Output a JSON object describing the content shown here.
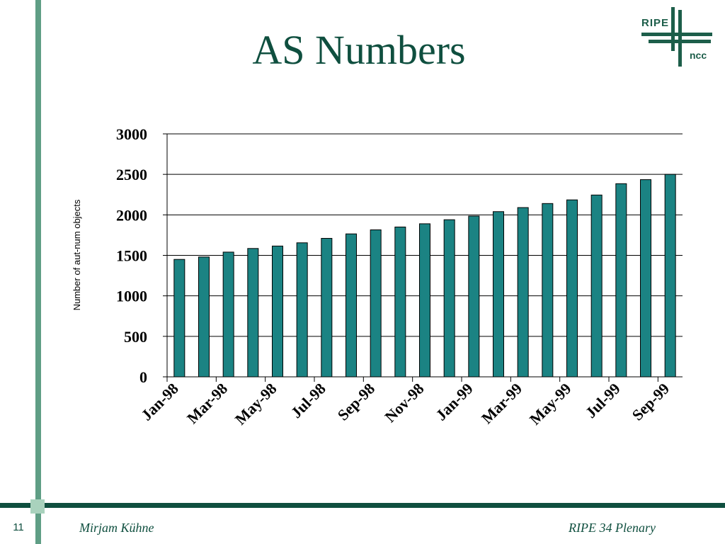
{
  "slide": {
    "title": "AS Numbers",
    "page_number": "11",
    "author": "Mirjam Kühne",
    "event": "RIPE 34 Plenary"
  },
  "logo": {
    "top_text": "RIPE",
    "bottom_text": "ncc"
  },
  "colors": {
    "bar_fill": "#1b8383",
    "title": "#0f4f3f",
    "accent_bar": "#5f9e85",
    "footer_bar": "#0f4f3f"
  },
  "chart_data": {
    "type": "bar",
    "title": "",
    "xlabel": "",
    "ylabel": "Number of aut-num objects",
    "ylim": [
      0,
      3000
    ],
    "yticks": [
      0,
      500,
      1000,
      1500,
      2000,
      2500,
      3000
    ],
    "grid": "horizontal",
    "categories": [
      "Jan-98",
      "Feb-98",
      "Mar-98",
      "Apr-98",
      "May-98",
      "Jun-98",
      "Jul-98",
      "Aug-98",
      "Sep-98",
      "Oct-98",
      "Nov-98",
      "Dec-98",
      "Jan-99",
      "Feb-99",
      "Mar-99",
      "Apr-99",
      "May-99",
      "Jun-99",
      "Jul-99",
      "Aug-99",
      "Sep-99"
    ],
    "tick_labels": [
      "Jan-98",
      "Mar-98",
      "May-98",
      "Jul-98",
      "Sep-98",
      "Nov-98",
      "Jan-99",
      "Mar-99",
      "May-99",
      "Jul-99",
      "Sep-99"
    ],
    "values": [
      1450,
      1480,
      1540,
      1585,
      1615,
      1655,
      1710,
      1765,
      1815,
      1850,
      1890,
      1940,
      1985,
      2040,
      2090,
      2140,
      2185,
      2245,
      2385,
      2435,
      2500
    ]
  }
}
